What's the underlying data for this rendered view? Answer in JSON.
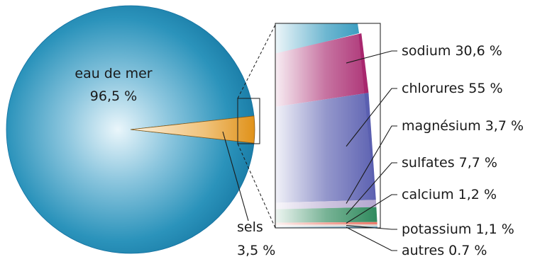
{
  "chart_data": [
    {
      "type": "pie",
      "slices": [
        {
          "label": "eau de mer",
          "value_label": "96,5 %",
          "value": 96.5,
          "color": "#1b86b0"
        },
        {
          "label": "sels",
          "value_label": "3,5 %",
          "value": 3.5,
          "color": "#e39a25"
        }
      ]
    },
    {
      "type": "bar",
      "stacked": true,
      "description_of": "sels",
      "categories": [
        "sodium",
        "chlorures",
        "magnésium",
        "sulfates",
        "calcium",
        "potassium",
        "autres"
      ],
      "values": [
        30.6,
        55,
        3.7,
        7.7,
        1.2,
        1.1,
        0.7
      ],
      "value_labels": [
        "30,6 %",
        "55 %",
        "3,7 %",
        "7,7 %",
        "1,2 %",
        "1,1 %",
        "0.7 %"
      ],
      "colors": [
        "#a8276e",
        "#5a5fb0",
        "#b4a6cf",
        "#2f8a5d",
        "#ec7a6a",
        "#d9d2cc",
        "#5aa3c8"
      ]
    }
  ]
}
